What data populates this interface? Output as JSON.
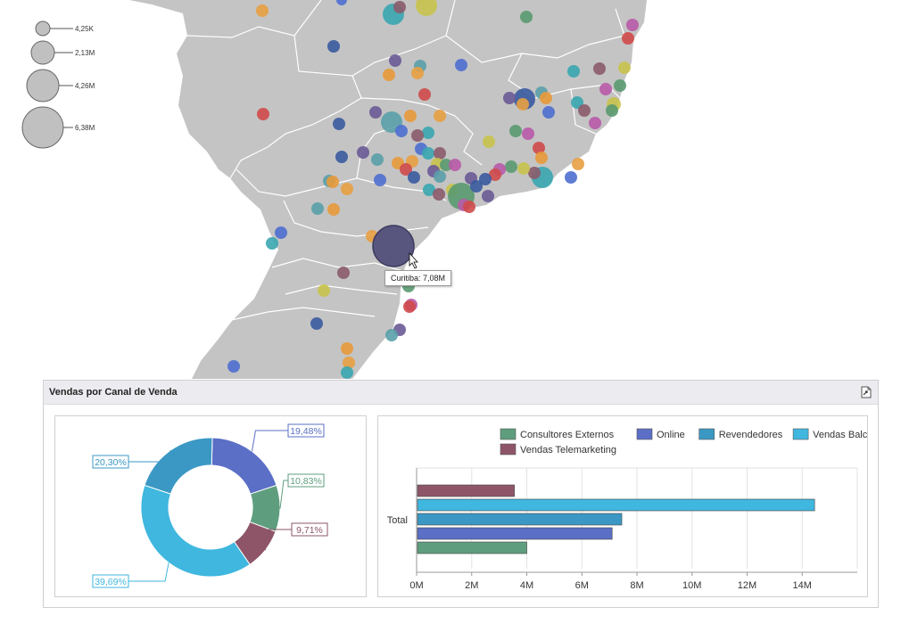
{
  "map": {
    "background_color": "#c4c4c4",
    "border_color": "#ffffff",
    "tooltip": "Curitiba: 7,08M",
    "size_legend": [
      "4,25K",
      "2,13M",
      "4,26M",
      "6,38M"
    ],
    "bubble_palette": [
      "#e8a043",
      "#4f6fd0",
      "#3aa6b0",
      "#8b5b6b",
      "#c9c34e",
      "#5a9a70",
      "#b85aa8",
      "#d04a4a",
      "#3a5aa0",
      "#6a5a96",
      "#5aa0a8",
      "#e89a3a"
    ]
  },
  "panel": {
    "title": "Vendas por Canal de Venda",
    "export_icon": "export-icon"
  },
  "chart_data": [
    {
      "type": "pie",
      "variant": "donut",
      "slices": [
        {
          "label": "19,48%",
          "value": 19.48,
          "color": "#5b6fc6"
        },
        {
          "label": "10,83%",
          "value": 10.83,
          "color": "#5e9e7e"
        },
        {
          "label": "9,71%",
          "value": 9.71,
          "color": "#8e5568"
        },
        {
          "label": "39,69%",
          "value": 39.69,
          "color": "#3fb7df"
        },
        {
          "label": "20,30%",
          "value": 20.3,
          "color": "#3b98c4"
        }
      ]
    },
    {
      "type": "bar",
      "orientation": "horizontal",
      "categories": [
        "Total"
      ],
      "legend": [
        {
          "name": "Consultores Externos",
          "color": "#5e9e7e"
        },
        {
          "name": "Online",
          "color": "#5b6fc6"
        },
        {
          "name": "Revendedores",
          "color": "#3b98c4"
        },
        {
          "name": "Vendas Balcão",
          "color": "#3fb7df"
        },
        {
          "name": "Vendas Telemarketing",
          "color": "#8e5568"
        }
      ],
      "series": [
        {
          "name": "Consultores Externos",
          "values": [
            4.0
          ],
          "color": "#5e9e7e"
        },
        {
          "name": "Online",
          "values": [
            7.1
          ],
          "color": "#5b6fc6"
        },
        {
          "name": "Revendedores",
          "values": [
            7.45
          ],
          "color": "#3b98c4"
        },
        {
          "name": "Vendas Balcão",
          "values": [
            14.45
          ],
          "color": "#3fb7df"
        },
        {
          "name": "Vendas Telemarketing",
          "values": [
            3.55
          ],
          "color": "#8e5568"
        }
      ],
      "x_ticks": [
        "0M",
        "2M",
        "4M",
        "6M",
        "8M",
        "10M",
        "12M",
        "14M"
      ],
      "xlim": [
        0,
        16
      ],
      "legend_position": "top",
      "grid": true
    }
  ]
}
